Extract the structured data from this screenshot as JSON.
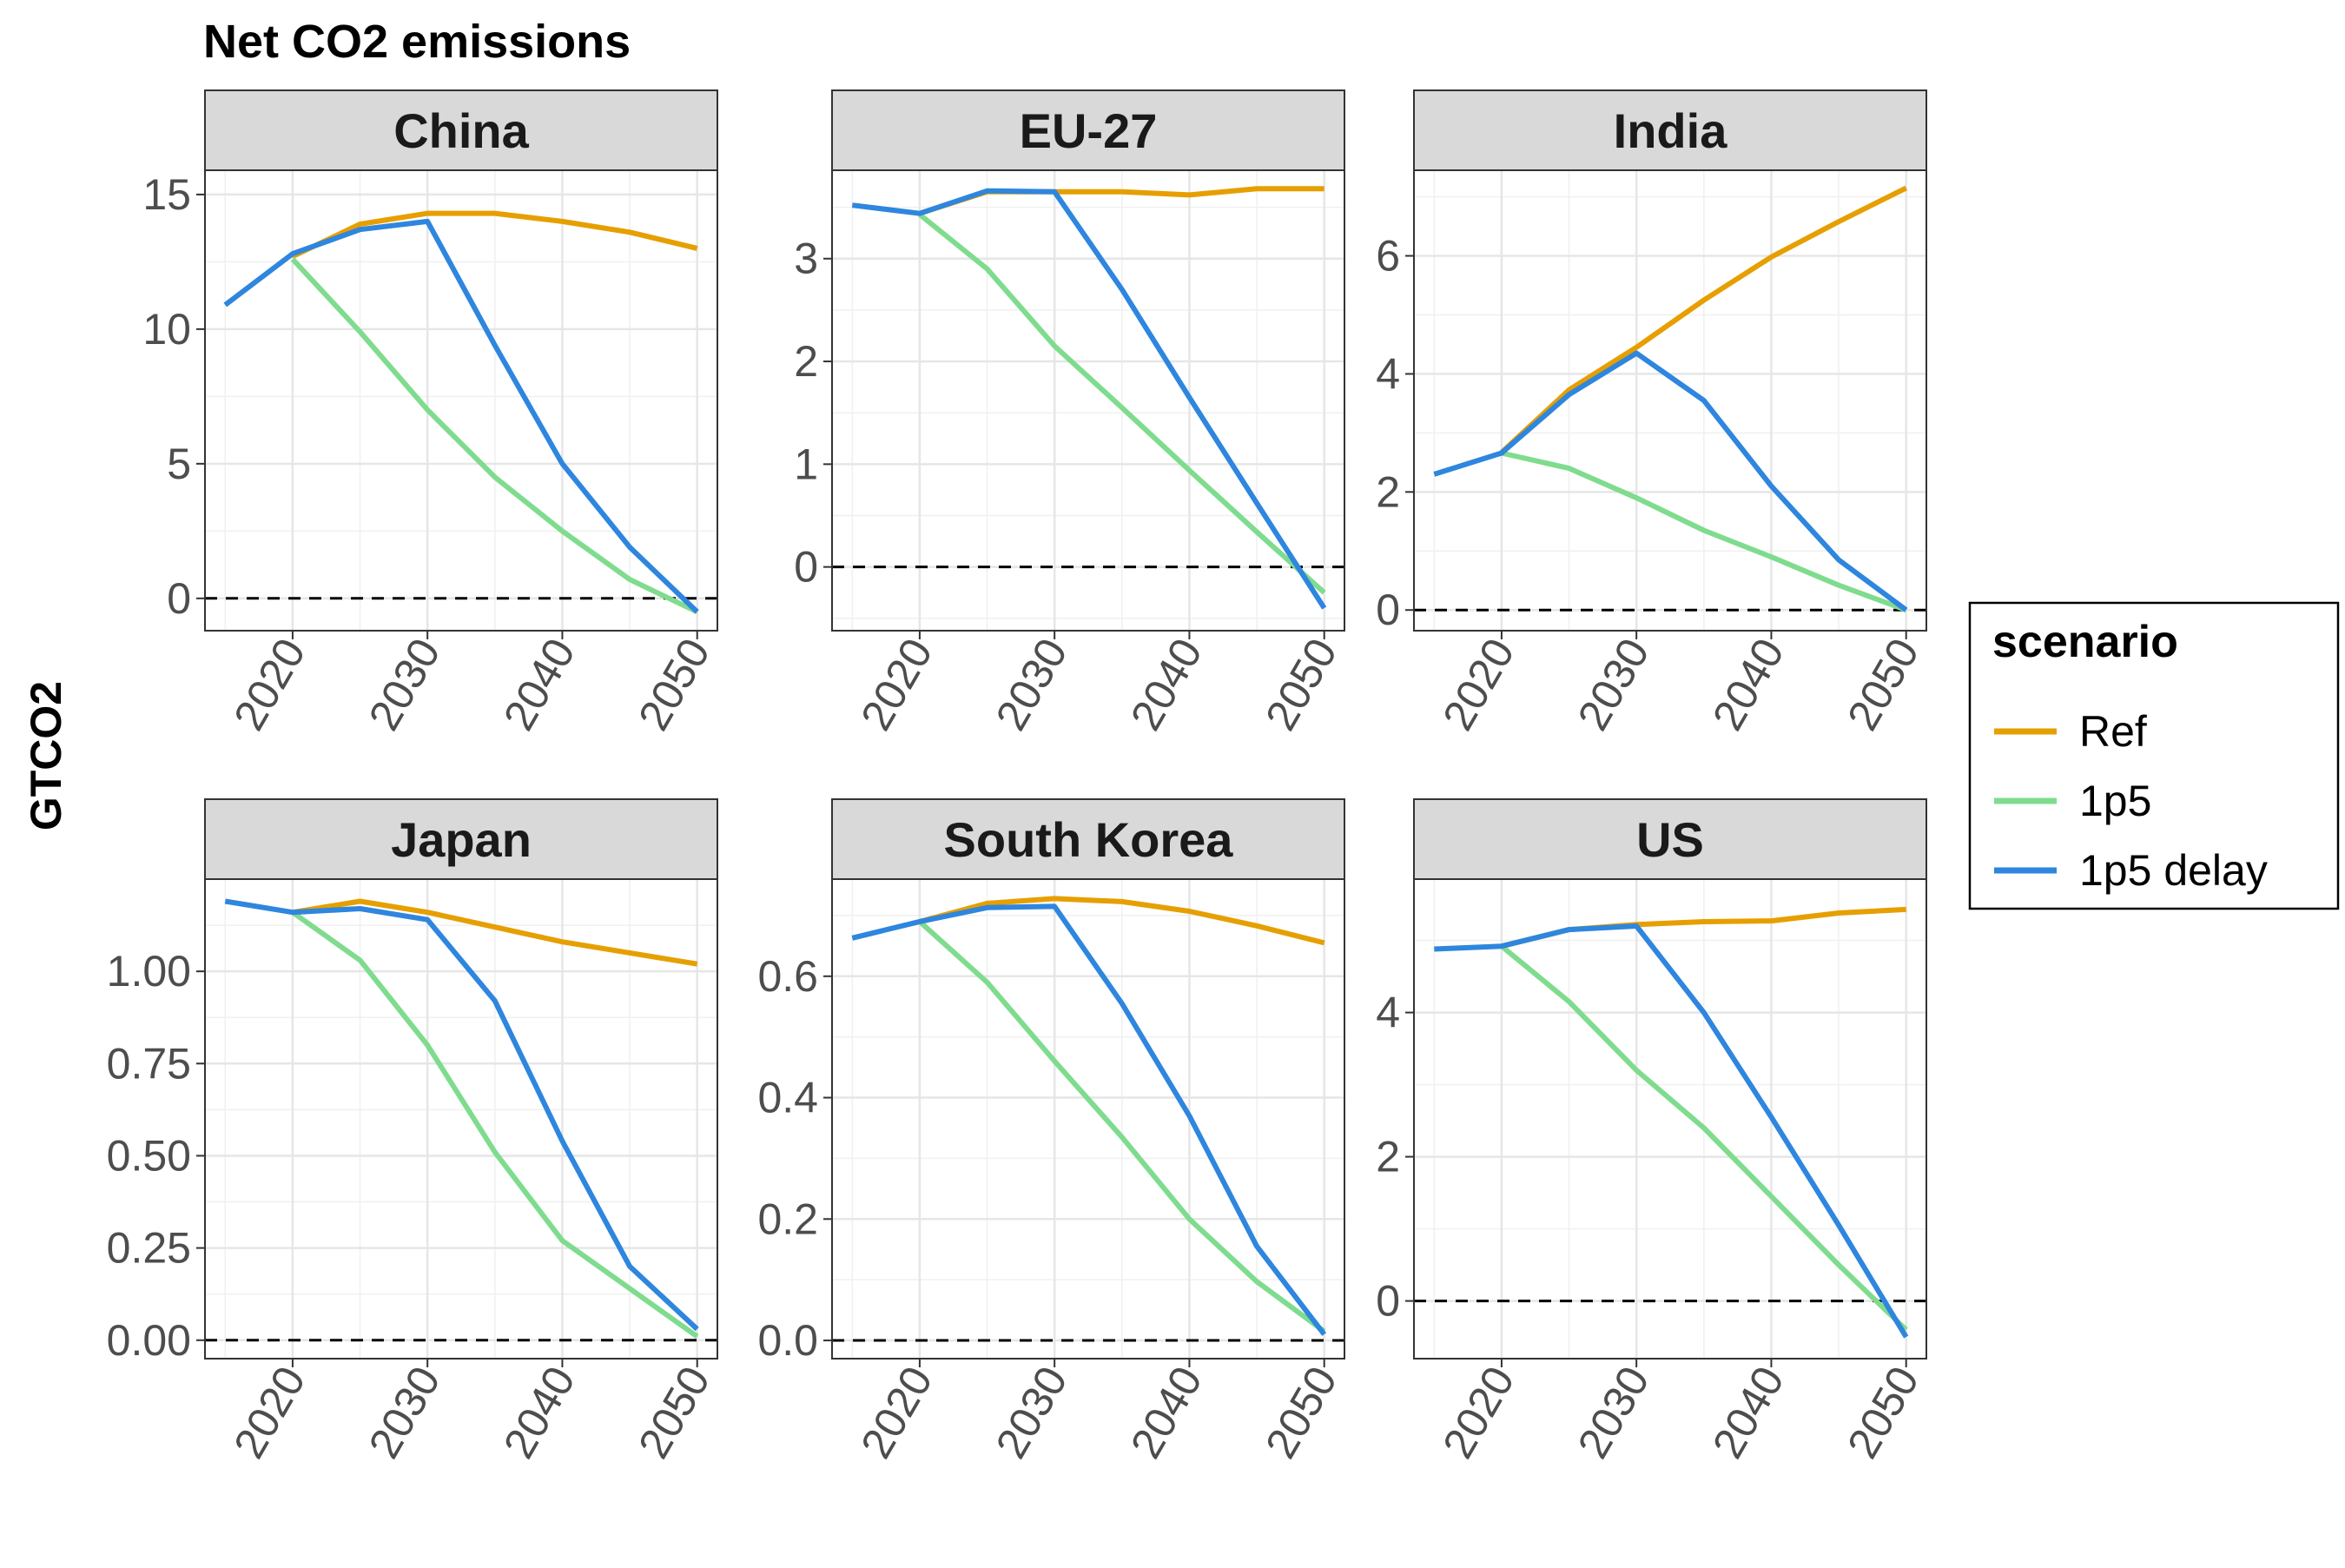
{
  "chart_data": {
    "type": "line",
    "title": "Net CO2 emissions",
    "ylabel": "GTCO2",
    "xlabel": "",
    "x": [
      2015,
      2020,
      2025,
      2030,
      2035,
      2040,
      2045,
      2050
    ],
    "xticks": [
      2020,
      2030,
      2040,
      2050
    ],
    "xlim": [
      2013.5,
      2051.5
    ],
    "legend": {
      "title": "scenario",
      "placement": "right",
      "entries": [
        {
          "name": "Ref",
          "color": "#E69F00"
        },
        {
          "name": "1p5",
          "color": "#7FDC8E"
        },
        {
          "name": "1p5 delay",
          "color": "#2E86DE"
        }
      ]
    },
    "reference_line": {
      "y": 0,
      "style": "dashed",
      "color": "#000000"
    },
    "grid": true,
    "panels": [
      {
        "name": "China",
        "ylim": [
          -1.2,
          15.9
        ],
        "yticks": [
          0,
          5,
          10,
          15
        ],
        "ytick_labels": [
          "0",
          "5",
          "10",
          "15"
        ],
        "series": [
          {
            "name": "Ref",
            "x": [
              2020,
              2025,
              2030,
              2035,
              2040,
              2045,
              2050
            ],
            "values": [
              12.7,
              13.9,
              14.3,
              14.3,
              14.0,
              13.6,
              13.0
            ]
          },
          {
            "name": "1p5",
            "x": [
              2020,
              2025,
              2030,
              2035,
              2040,
              2045,
              2050
            ],
            "values": [
              12.6,
              9.9,
              7.0,
              4.5,
              2.5,
              0.7,
              -0.5
            ]
          },
          {
            "name": "1p5 delay",
            "x": [
              2015,
              2020,
              2025,
              2030,
              2035,
              2040,
              2045,
              2050
            ],
            "values": [
              10.9,
              12.8,
              13.7,
              14.0,
              9.4,
              5.0,
              1.9,
              -0.5
            ]
          }
        ]
      },
      {
        "name": "EU-27",
        "ylim": [
          -0.62,
          3.86
        ],
        "yticks": [
          0,
          1,
          2,
          3
        ],
        "ytick_labels": [
          "0",
          "1",
          "2",
          "3"
        ],
        "series": [
          {
            "name": "Ref",
            "x": [
              2020,
              2025,
              2030,
              2035,
              2040,
              2045,
              2050
            ],
            "values": [
              3.44,
              3.65,
              3.65,
              3.65,
              3.62,
              3.68,
              3.68
            ]
          },
          {
            "name": "1p5",
            "x": [
              2020,
              2025,
              2030,
              2035,
              2040,
              2045,
              2050
            ],
            "values": [
              3.43,
              2.9,
              2.15,
              1.55,
              0.94,
              0.34,
              -0.25
            ]
          },
          {
            "name": "1p5 delay",
            "x": [
              2015,
              2020,
              2025,
              2030,
              2035,
              2040,
              2045,
              2050
            ],
            "values": [
              3.52,
              3.44,
              3.66,
              3.65,
              2.7,
              1.65,
              0.62,
              -0.4
            ]
          }
        ]
      },
      {
        "name": "India",
        "ylim": [
          -0.35,
          7.45
        ],
        "yticks": [
          0,
          2,
          4,
          6
        ],
        "ytick_labels": [
          "0",
          "2",
          "4",
          "6"
        ],
        "series": [
          {
            "name": "Ref",
            "x": [
              2020,
              2025,
              2030,
              2035,
              2040,
              2045,
              2050
            ],
            "values": [
              2.67,
              3.73,
              4.45,
              5.25,
              5.98,
              6.58,
              7.15
            ]
          },
          {
            "name": "1p5",
            "x": [
              2020,
              2025,
              2030,
              2035,
              2040,
              2045,
              2050
            ],
            "values": [
              2.66,
              2.4,
              1.9,
              1.35,
              0.9,
              0.42,
              0.0
            ]
          },
          {
            "name": "1p5 delay",
            "x": [
              2015,
              2020,
              2025,
              2030,
              2035,
              2040,
              2045,
              2050
            ],
            "values": [
              2.3,
              2.66,
              3.65,
              4.35,
              3.55,
              2.1,
              0.85,
              0.0
            ]
          }
        ]
      },
      {
        "name": "Japan",
        "ylim": [
          -0.05,
          1.25
        ],
        "yticks": [
          0,
          0.25,
          0.5,
          0.75,
          1.0
        ],
        "ytick_labels": [
          "0.00",
          "0.25",
          "0.50",
          "0.75",
          "1.00"
        ],
        "series": [
          {
            "name": "Ref",
            "x": [
              2020,
              2025,
              2030,
              2035,
              2040,
              2045,
              2050
            ],
            "values": [
              1.16,
              1.19,
              1.16,
              1.12,
              1.08,
              1.05,
              1.02
            ]
          },
          {
            "name": "1p5",
            "x": [
              2020,
              2025,
              2030,
              2035,
              2040,
              2045,
              2050
            ],
            "values": [
              1.16,
              1.03,
              0.8,
              0.51,
              0.27,
              0.14,
              0.01
            ]
          },
          {
            "name": "1p5 delay",
            "x": [
              2015,
              2020,
              2025,
              2030,
              2035,
              2040,
              2045,
              2050
            ],
            "values": [
              1.19,
              1.16,
              1.17,
              1.14,
              0.92,
              0.54,
              0.2,
              0.03
            ]
          }
        ]
      },
      {
        "name": "South Korea",
        "ylim": [
          -0.03,
          0.76
        ],
        "yticks": [
          0,
          0.2,
          0.4,
          0.6
        ],
        "ytick_labels": [
          "0.0",
          "0.2",
          "0.4",
          "0.6"
        ],
        "series": [
          {
            "name": "Ref",
            "x": [
              2020,
              2025,
              2030,
              2035,
              2040,
              2045,
              2050
            ],
            "values": [
              0.69,
              0.72,
              0.728,
              0.723,
              0.707,
              0.683,
              0.655
            ]
          },
          {
            "name": "1p5",
            "x": [
              2020,
              2025,
              2030,
              2035,
              2040,
              2045,
              2050
            ],
            "values": [
              0.69,
              0.59,
              0.46,
              0.335,
              0.2,
              0.097,
              0.015
            ]
          },
          {
            "name": "1p5 delay",
            "x": [
              2015,
              2020,
              2025,
              2030,
              2035,
              2040,
              2045,
              2050
            ],
            "values": [
              0.663,
              0.69,
              0.713,
              0.715,
              0.555,
              0.37,
              0.155,
              0.01
            ]
          }
        ]
      },
      {
        "name": "US",
        "ylim": [
          -0.8,
          5.85
        ],
        "yticks": [
          0,
          2,
          4
        ],
        "ytick_labels": [
          "0",
          "2",
          "4"
        ],
        "series": [
          {
            "name": "Ref",
            "x": [
              2020,
              2025,
              2030,
              2035,
              2040,
              2045,
              2050
            ],
            "values": [
              4.92,
              5.15,
              5.22,
              5.26,
              5.27,
              5.38,
              5.43
            ]
          },
          {
            "name": "1p5",
            "x": [
              2020,
              2025,
              2030,
              2035,
              2040,
              2045,
              2050
            ],
            "values": [
              4.92,
              4.15,
              3.2,
              2.4,
              1.45,
              0.5,
              -0.4
            ]
          },
          {
            "name": "1p5 delay",
            "x": [
              2015,
              2020,
              2025,
              2030,
              2035,
              2040,
              2045,
              2050
            ],
            "values": [
              4.88,
              4.92,
              5.15,
              5.2,
              4.0,
              2.55,
              1.05,
              -0.5
            ]
          }
        ]
      }
    ]
  }
}
